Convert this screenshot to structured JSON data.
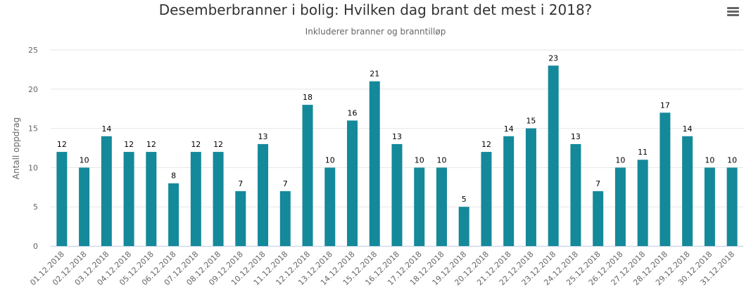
{
  "header": {
    "title": "Desemberbranner i bolig: Hvilken dag brant det mest i 2018?",
    "subtitle": "Inkluderer branner og branntilløp",
    "menu_icon": "hamburger-menu-icon"
  },
  "chart_data": {
    "type": "bar",
    "title": "Desemberbranner i bolig: Hvilken dag brant det mest i 2018?",
    "subtitle": "Inkluderer branner og branntilløp",
    "xlabel": "",
    "ylabel": "Antall oppdrag",
    "ylim": [
      0,
      25
    ],
    "yticks": [
      0,
      5,
      10,
      15,
      20,
      25
    ],
    "grid": true,
    "color": "#14899a",
    "categories": [
      "01.12.2018",
      "02.12.2018",
      "03.12.2018",
      "04.12.2018",
      "05.12.2018",
      "06.12.2018",
      "07.12.2018",
      "08.12.2018",
      "09.12.2018",
      "10.12.2018",
      "11.12.2018",
      "12.12.2018",
      "13.12.2018",
      "14.12.2018",
      "15.12.2018",
      "16.12.2018",
      "17.12.2018",
      "18.12.2018",
      "19.12.2018",
      "20.12.2018",
      "21.12.2018",
      "22.12.2018",
      "23.12.2018",
      "24.12.2018",
      "25.12.2018",
      "26.12.2018",
      "27.12.2018",
      "28.12.2018",
      "29.12.2018",
      "30.12.2018",
      "31.12.2018"
    ],
    "values": [
      12,
      10,
      14,
      12,
      12,
      8,
      12,
      12,
      7,
      13,
      7,
      18,
      10,
      16,
      21,
      13,
      10,
      10,
      5,
      12,
      14,
      15,
      23,
      13,
      7,
      10,
      11,
      17,
      14,
      10,
      10
    ]
  }
}
